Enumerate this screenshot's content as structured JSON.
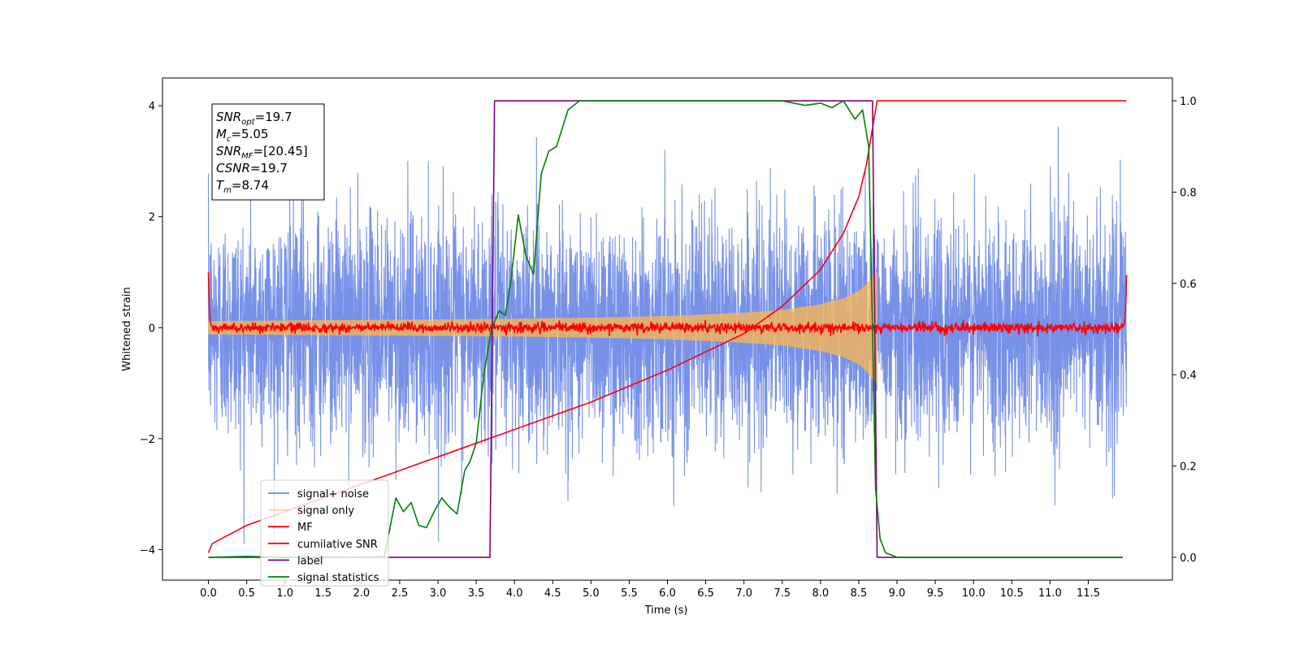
{
  "chart_data": {
    "type": "line",
    "title": "",
    "xlabel": "Time (s)",
    "ylabel": "Whitened strain",
    "xlim": [
      -0.6,
      12.6
    ],
    "ylim": [
      -4.55,
      4.5
    ],
    "y2lim": [
      -0.05,
      1.05
    ],
    "x_ticks": [
      "0.0",
      "0.5",
      "1.0",
      "1.5",
      "2.0",
      "2.5",
      "3.0",
      "3.5",
      "4.0",
      "4.5",
      "5.0",
      "5.5",
      "6.0",
      "6.5",
      "7.0",
      "7.5",
      "8.0",
      "8.5",
      "9.0",
      "9.5",
      "10.0",
      "10.5",
      "11.0",
      "11.5"
    ],
    "y_ticks": [
      "4",
      "2",
      "0",
      "−2",
      "−4"
    ],
    "y2_ticks": [
      "1.0",
      "0.8",
      "0.6",
      "0.4",
      "0.2",
      "0.0"
    ],
    "grid": false,
    "legend_position": "bottom-left",
    "annotation": {
      "line1_main": "SNR",
      "line1_sub": "opt",
      "line1_val": "=19.7",
      "line2_main": "M",
      "line2_sub": "c",
      "line2_val": "=5.05",
      "line3_main": "SNR",
      "line3_sub": "MF",
      "line3_val": "=[20.45]",
      "line4_main": "CSNR",
      "line4_val": "=19.7",
      "line5_main": "T",
      "line5_sub": "m",
      "line5_val": "=8.74"
    },
    "series": [
      {
        "name": "signal+ noise",
        "color": "#6b88e6",
        "axis": "left",
        "kind": "noise",
        "std": 1.0,
        "range": [
          0.0,
          12.0
        ]
      },
      {
        "name": "signal only",
        "color": "#ffb84d",
        "axis": "left",
        "kind": "chirp",
        "range": [
          0.0,
          8.74
        ],
        "envelope": {
          "x": [
            0.0,
            1.0,
            2.0,
            3.0,
            4.0,
            5.0,
            6.0,
            7.0,
            7.5,
            8.0,
            8.3,
            8.5,
            8.6,
            8.7,
            8.74
          ],
          "y": [
            0.12,
            0.13,
            0.14,
            0.15,
            0.16,
            0.18,
            0.21,
            0.27,
            0.32,
            0.42,
            0.53,
            0.66,
            0.78,
            0.95,
            1.0
          ]
        }
      },
      {
        "name": "MF",
        "color": "#ff0000",
        "axis": "left",
        "kind": "mf",
        "range": [
          0.0,
          12.0
        ],
        "edge_peaks": [
          1.0,
          0.95
        ]
      },
      {
        "name": "cumilative SNR",
        "color": "#ff0000",
        "axis": "right",
        "x": [
          0.0,
          0.05,
          0.5,
          1.0,
          2.0,
          3.0,
          4.0,
          5.0,
          6.0,
          6.5,
          7.0,
          7.5,
          8.0,
          8.3,
          8.5,
          8.6,
          8.7,
          8.74,
          9.0,
          10.0,
          11.0,
          12.0
        ],
        "y": [
          0.01,
          0.03,
          0.07,
          0.1,
          0.16,
          0.22,
          0.28,
          0.34,
          0.41,
          0.45,
          0.49,
          0.55,
          0.63,
          0.71,
          0.79,
          0.86,
          0.96,
          1.0,
          1.0,
          1.0,
          1.0,
          1.0
        ]
      },
      {
        "name": "label",
        "color": "#800080",
        "axis": "right",
        "x": [
          0.0,
          3.68,
          3.74,
          8.68,
          8.74,
          11.95
        ],
        "y": [
          0.0,
          0.0,
          1.0,
          1.0,
          0.0,
          0.0
        ]
      },
      {
        "name": "signal statistics",
        "color": "#008000",
        "axis": "right",
        "x": [
          0.0,
          0.5,
          1.0,
          1.5,
          2.0,
          2.3,
          2.45,
          2.55,
          2.65,
          2.75,
          2.85,
          2.95,
          3.05,
          3.15,
          3.25,
          3.35,
          3.42,
          3.5,
          3.6,
          3.7,
          3.8,
          3.88,
          3.95,
          4.05,
          4.15,
          4.25,
          4.35,
          4.45,
          4.55,
          4.7,
          4.85,
          5.0,
          5.5,
          6.0,
          6.5,
          7.0,
          7.5,
          7.8,
          8.0,
          8.15,
          8.3,
          8.45,
          8.55,
          8.63,
          8.68,
          8.72,
          8.78,
          8.85,
          9.0,
          10.0,
          11.0,
          11.95
        ],
        "y": [
          0.0,
          0.002,
          0.0,
          0.001,
          0.0,
          0.002,
          0.13,
          0.1,
          0.12,
          0.07,
          0.065,
          0.1,
          0.13,
          0.11,
          0.095,
          0.19,
          0.21,
          0.25,
          0.4,
          0.5,
          0.54,
          0.53,
          0.6,
          0.75,
          0.66,
          0.62,
          0.84,
          0.89,
          0.9,
          0.98,
          1.0,
          1.0,
          1.0,
          1.0,
          1.0,
          1.0,
          1.0,
          0.99,
          0.995,
          0.985,
          1.0,
          0.96,
          0.98,
          0.9,
          0.5,
          0.15,
          0.04,
          0.01,
          0.0,
          0.0,
          0.0,
          0.0
        ]
      }
    ]
  }
}
